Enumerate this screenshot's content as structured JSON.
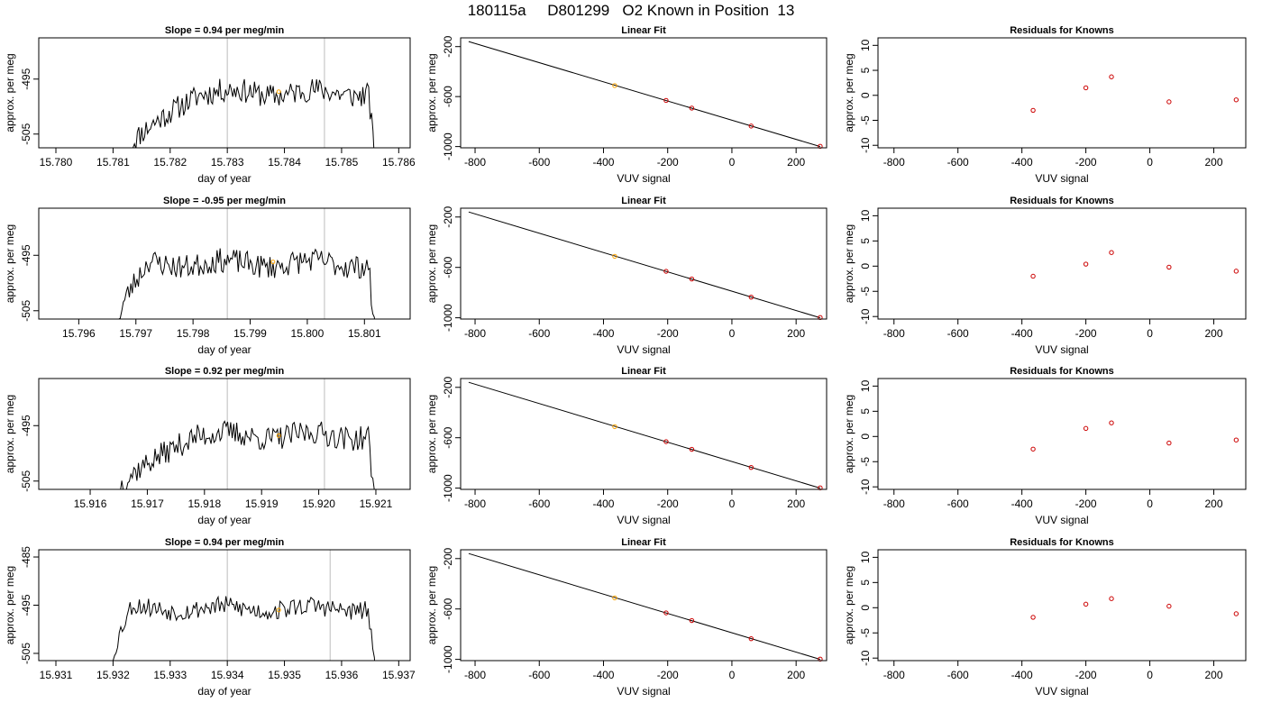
{
  "page_title": "180115a     D801299   O2 Known in Position  13",
  "chart_data": [
    {
      "row": 1,
      "panel": "timeseries",
      "type": "line",
      "title": "Slope =  0.94  per meg/min",
      "xlabel": "day of year",
      "ylabel": "approx. per meg",
      "xlim": [
        15.7797,
        15.7862
      ],
      "ylim": [
        -507.5,
        -487.5
      ],
      "xticks": [
        "15.780",
        "15.781",
        "15.782",
        "15.783",
        "15.784",
        "15.785",
        "15.786"
      ],
      "xtick_values": [
        15.78,
        15.781,
        15.782,
        15.783,
        15.784,
        15.785,
        15.786
      ],
      "yticks": [
        "-495",
        "-505"
      ],
      "ytick_values": [
        -495,
        -505
      ],
      "vlines": [
        15.783,
        15.7847
      ],
      "trace_start": 15.7813,
      "trace_end": 15.7856,
      "trace_start_value": -507.5,
      "plateau_start": 15.7826,
      "plateau_level": -497.5,
      "trace_amplitude": 2.2,
      "trace_seed": 11,
      "marker": {
        "x": 15.7839,
        "y": -497.3,
        "color": "#ffa500"
      }
    },
    {
      "row": 1,
      "panel": "fit",
      "type": "scatter",
      "title": "Linear Fit",
      "xlabel": "VUV signal",
      "ylabel": "approx. per meg",
      "xlim": [
        -845,
        295
      ],
      "ylim": [
        -1010,
        -130
      ],
      "xticks": [
        "-800",
        "-600",
        "-400",
        "-200",
        "0",
        "200"
      ],
      "xtick_values": [
        -800,
        -600,
        -400,
        -200,
        0,
        200
      ],
      "yticks": [
        "-200",
        "-600",
        "-1000"
      ],
      "ytick_values": [
        -200,
        -600,
        -1000
      ],
      "line": {
        "x": [
          -820,
          275
        ],
        "y": [
          -160,
          -1000
        ]
      },
      "points": [
        {
          "x": -365,
          "y": -512,
          "color": "#ffa500"
        },
        {
          "x": -205,
          "y": -631,
          "color": "#cc0000"
        },
        {
          "x": -125,
          "y": -692,
          "color": "#cc0000"
        },
        {
          "x": 60,
          "y": -836,
          "color": "#cc0000"
        },
        {
          "x": 275,
          "y": -998,
          "color": "#cc0000"
        }
      ]
    },
    {
      "row": 1,
      "panel": "residuals",
      "type": "scatter",
      "title": "Residuals for Knowns",
      "xlabel": "VUV signal",
      "ylabel": "approx. per meg",
      "xlim": [
        -850,
        300
      ],
      "ylim": [
        -10.5,
        11.5
      ],
      "xticks": [
        "-800",
        "-600",
        "-400",
        "-200",
        "0",
        "200"
      ],
      "xtick_values": [
        -800,
        -600,
        -400,
        -200,
        0,
        200
      ],
      "yticks": [
        "-10",
        "-5",
        "0",
        "5",
        "10"
      ],
      "ytick_values": [
        -10,
        -5,
        0,
        5,
        10
      ],
      "points": [
        {
          "x": -365,
          "y": -3.0
        },
        {
          "x": -200,
          "y": 1.5
        },
        {
          "x": -120,
          "y": 3.7
        },
        {
          "x": 60,
          "y": -1.3
        },
        {
          "x": 270,
          "y": -0.9
        }
      ],
      "point_color": "#cc0000"
    },
    {
      "row": 2,
      "panel": "timeseries",
      "type": "line",
      "title": "Slope =  -0.95  per meg/min",
      "xlabel": "day of year",
      "ylabel": "approx. per meg",
      "xlim": [
        15.7953,
        15.8018
      ],
      "ylim": [
        -506.5,
        -486.5
      ],
      "xticks": [
        "15.796",
        "15.797",
        "15.798",
        "15.799",
        "15.800",
        "15.801"
      ],
      "xtick_values": [
        15.796,
        15.797,
        15.798,
        15.799,
        15.8,
        15.801
      ],
      "yticks": [
        "-495",
        "-505"
      ],
      "ytick_values": [
        -495,
        -505
      ],
      "vlines": [
        15.7986,
        15.8003
      ],
      "trace_start": 15.7967,
      "trace_end": 15.8012,
      "trace_start_value": -506.5,
      "plateau_start": 15.7972,
      "plateau_level": -496.5,
      "trace_amplitude": 2.2,
      "trace_seed": 23,
      "marker": {
        "x": 15.7994,
        "y": -496.2,
        "color": "#ffa500"
      }
    },
    {
      "row": 2,
      "panel": "fit",
      "type": "scatter",
      "title": "Linear Fit",
      "xlabel": "VUV signal",
      "ylabel": "approx. per meg",
      "xlim": [
        -845,
        295
      ],
      "ylim": [
        -1010,
        -130
      ],
      "xticks": [
        "-800",
        "-600",
        "-400",
        "-200",
        "0",
        "200"
      ],
      "xtick_values": [
        -800,
        -600,
        -400,
        -200,
        0,
        200
      ],
      "yticks": [
        "-200",
        "-600",
        "-1000"
      ],
      "ytick_values": [
        -200,
        -600,
        -1000
      ],
      "line": {
        "x": [
          -820,
          275
        ],
        "y": [
          -160,
          -1000
        ]
      },
      "points": [
        {
          "x": -365,
          "y": -512,
          "color": "#ffa500"
        },
        {
          "x": -205,
          "y": -631,
          "color": "#cc0000"
        },
        {
          "x": -125,
          "y": -692,
          "color": "#cc0000"
        },
        {
          "x": 60,
          "y": -836,
          "color": "#cc0000"
        },
        {
          "x": 275,
          "y": -998,
          "color": "#cc0000"
        }
      ]
    },
    {
      "row": 2,
      "panel": "residuals",
      "type": "scatter",
      "title": "Residuals for Knowns",
      "xlabel": "VUV signal",
      "ylabel": "approx. per meg",
      "xlim": [
        -850,
        300
      ],
      "ylim": [
        -10.5,
        11.5
      ],
      "xticks": [
        "-800",
        "-600",
        "-400",
        "-200",
        "0",
        "200"
      ],
      "xtick_values": [
        -800,
        -600,
        -400,
        -200,
        0,
        200
      ],
      "yticks": [
        "-10",
        "-5",
        "0",
        "5",
        "10"
      ],
      "ytick_values": [
        -10,
        -5,
        0,
        5,
        10
      ],
      "points": [
        {
          "x": -365,
          "y": -2.0
        },
        {
          "x": -200,
          "y": 0.4
        },
        {
          "x": -120,
          "y": 2.7
        },
        {
          "x": 60,
          "y": -0.2
        },
        {
          "x": 270,
          "y": -1.0
        }
      ],
      "point_color": "#cc0000"
    },
    {
      "row": 3,
      "panel": "timeseries",
      "type": "line",
      "title": "Slope =  0.92  per meg/min",
      "xlabel": "day of year",
      "ylabel": "approx. per meg",
      "xlim": [
        15.9151,
        15.9216
      ],
      "ylim": [
        -506.5,
        -486.5
      ],
      "xticks": [
        "15.916",
        "15.917",
        "15.918",
        "15.919",
        "15.920",
        "15.921"
      ],
      "xtick_values": [
        15.916,
        15.917,
        15.918,
        15.919,
        15.92,
        15.921
      ],
      "yticks": [
        "-495",
        "-505"
      ],
      "ytick_values": [
        -495,
        -505
      ],
      "vlines": [
        15.9184,
        15.9201
      ],
      "trace_start": 15.9165,
      "trace_end": 15.921,
      "trace_start_value": -506.5,
      "plateau_start": 15.9179,
      "plateau_level": -496.8,
      "trace_amplitude": 2.2,
      "trace_seed": 37,
      "marker": {
        "x": 15.9193,
        "y": -496.8,
        "color": "#ffa500"
      }
    },
    {
      "row": 3,
      "panel": "fit",
      "type": "scatter",
      "title": "Linear Fit",
      "xlabel": "VUV signal",
      "ylabel": "approx. per meg",
      "xlim": [
        -845,
        295
      ],
      "ylim": [
        -1010,
        -130
      ],
      "xticks": [
        "-800",
        "-600",
        "-400",
        "-200",
        "0",
        "200"
      ],
      "xtick_values": [
        -800,
        -600,
        -400,
        -200,
        0,
        200
      ],
      "yticks": [
        "-200",
        "-600",
        "-1000"
      ],
      "ytick_values": [
        -200,
        -600,
        -1000
      ],
      "line": {
        "x": [
          -820,
          275
        ],
        "y": [
          -160,
          -1000
        ]
      },
      "points": [
        {
          "x": -365,
          "y": -512,
          "color": "#ffa500"
        },
        {
          "x": -205,
          "y": -631,
          "color": "#cc0000"
        },
        {
          "x": -125,
          "y": -692,
          "color": "#cc0000"
        },
        {
          "x": 60,
          "y": -836,
          "color": "#cc0000"
        },
        {
          "x": 275,
          "y": -998,
          "color": "#cc0000"
        }
      ]
    },
    {
      "row": 3,
      "panel": "residuals",
      "type": "scatter",
      "title": "Residuals for Knowns",
      "xlabel": "VUV signal",
      "ylabel": "approx. per meg",
      "xlim": [
        -850,
        300
      ],
      "ylim": [
        -10.5,
        11.5
      ],
      "xticks": [
        "-800",
        "-600",
        "-400",
        "-200",
        "0",
        "200"
      ],
      "xtick_values": [
        -800,
        -600,
        -400,
        -200,
        0,
        200
      ],
      "yticks": [
        "-10",
        "-5",
        "0",
        "5",
        "10"
      ],
      "ytick_values": [
        -10,
        -5,
        0,
        5,
        10
      ],
      "points": [
        {
          "x": -365,
          "y": -2.5
        },
        {
          "x": -200,
          "y": 1.6
        },
        {
          "x": -120,
          "y": 2.7
        },
        {
          "x": 60,
          "y": -1.3
        },
        {
          "x": 270,
          "y": -0.7
        }
      ],
      "point_color": "#cc0000"
    },
    {
      "row": 4,
      "panel": "timeseries",
      "type": "line",
      "title": "Slope =  0.94  per meg/min",
      "xlabel": "day of year",
      "ylabel": "approx. per meg",
      "xlim": [
        15.9307,
        15.9372
      ],
      "ylim": [
        -506.5,
        -483.5
      ],
      "xticks": [
        "15.931",
        "15.932",
        "15.933",
        "15.934",
        "15.935",
        "15.936",
        "15.937"
      ],
      "xtick_values": [
        15.931,
        15.932,
        15.933,
        15.934,
        15.935,
        15.936,
        15.937
      ],
      "yticks": [
        "-485",
        "-495",
        "-505"
      ],
      "ytick_values": [
        -485,
        -495,
        -505
      ],
      "vlines": [
        15.934,
        15.9358
      ],
      "trace_start": 15.932,
      "trace_end": 15.9366,
      "trace_start_value": -506.5,
      "plateau_start": 15.9323,
      "plateau_level": -495.7,
      "trace_amplitude": 2.0,
      "trace_seed": 53,
      "marker": {
        "x": 15.9349,
        "y": -496.0,
        "color": "#ffa500"
      }
    },
    {
      "row": 4,
      "panel": "fit",
      "type": "scatter",
      "title": "Linear Fit",
      "xlabel": "VUV signal",
      "ylabel": "approx. per meg",
      "xlim": [
        -845,
        295
      ],
      "ylim": [
        -1010,
        -130
      ],
      "xticks": [
        "-800",
        "-600",
        "-400",
        "-200",
        "0",
        "200"
      ],
      "xtick_values": [
        -800,
        -600,
        -400,
        -200,
        0,
        200
      ],
      "yticks": [
        "-200",
        "-600",
        "-1000"
      ],
      "ytick_values": [
        -200,
        -600,
        -1000
      ],
      "line": {
        "x": [
          -820,
          275
        ],
        "y": [
          -160,
          -1000
        ]
      },
      "points": [
        {
          "x": -365,
          "y": -512,
          "color": "#ffa500"
        },
        {
          "x": -205,
          "y": -631,
          "color": "#cc0000"
        },
        {
          "x": -125,
          "y": -692,
          "color": "#cc0000"
        },
        {
          "x": 60,
          "y": -836,
          "color": "#cc0000"
        },
        {
          "x": 275,
          "y": -998,
          "color": "#cc0000"
        }
      ]
    },
    {
      "row": 4,
      "panel": "residuals",
      "type": "scatter",
      "title": "Residuals for Knowns",
      "xlabel": "VUV signal",
      "ylabel": "approx. per meg",
      "xlim": [
        -850,
        300
      ],
      "ylim": [
        -10.5,
        11.5
      ],
      "xticks": [
        "-800",
        "-600",
        "-400",
        "-200",
        "0",
        "200"
      ],
      "xtick_values": [
        -800,
        -600,
        -400,
        -200,
        0,
        200
      ],
      "yticks": [
        "-10",
        "-5",
        "0",
        "5",
        "10"
      ],
      "ytick_values": [
        -10,
        -5,
        0,
        5,
        10
      ],
      "points": [
        {
          "x": -365,
          "y": -1.9
        },
        {
          "x": -200,
          "y": 0.7
        },
        {
          "x": -120,
          "y": 1.8
        },
        {
          "x": 60,
          "y": 0.3
        },
        {
          "x": 270,
          "y": -1.2
        }
      ],
      "point_color": "#cc0000"
    }
  ]
}
